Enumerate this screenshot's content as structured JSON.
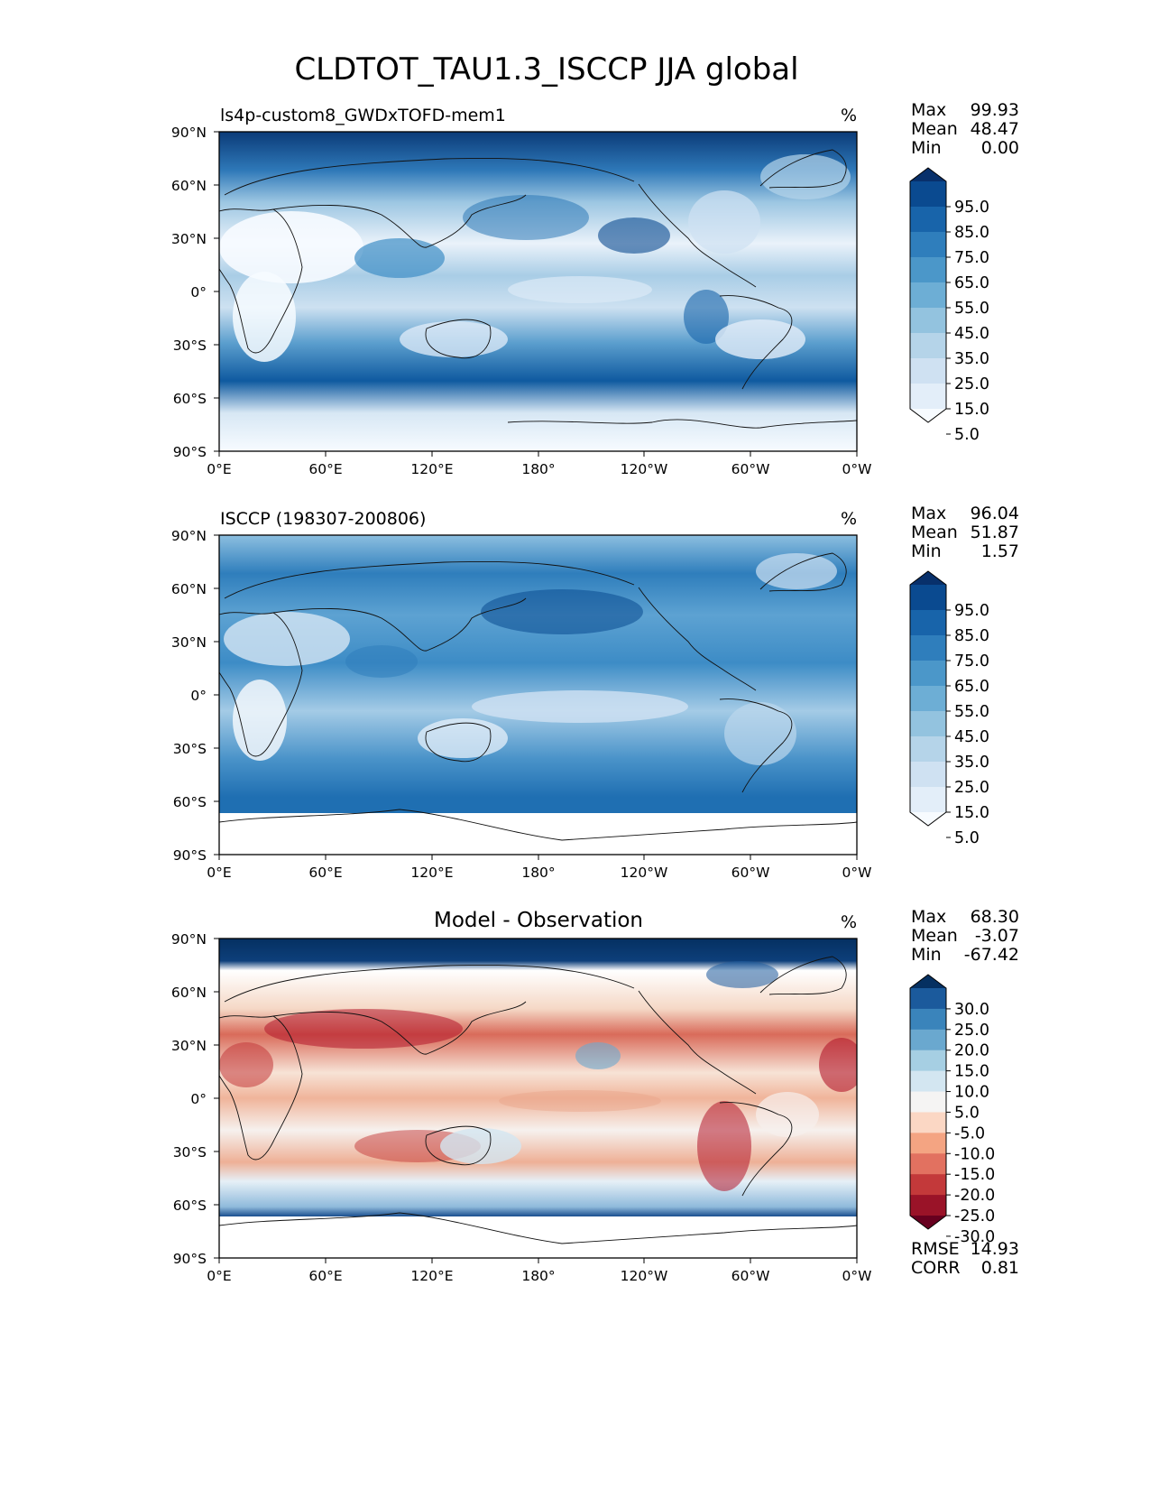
{
  "figure": {
    "suptitle": "CLDTOT_TAU1.3_ISCCP JJA global",
    "lon_ticks": [
      "0°E",
      "60°E",
      "120°E",
      "180°",
      "120°W",
      "60°W",
      "0°W"
    ],
    "lat_ticks": [
      "90°N",
      "60°N",
      "30°N",
      "0°",
      "30°S",
      "60°S",
      "90°S"
    ],
    "stat_labels": {
      "max": "Max",
      "mean": "Mean",
      "min": "Min",
      "rmse": "RMSE",
      "corr": "CORR"
    }
  },
  "panels": [
    {
      "title_left": "ls4p-custom8_GWDxTOFD-mem1",
      "title_center": "",
      "units": "%",
      "stats": {
        "max": "99.93",
        "mean": "48.47",
        "min": "0.00"
      },
      "colorbar": {
        "tick_labels": [
          "95.0",
          "85.0",
          "75.0",
          "65.0",
          "55.0",
          "45.0",
          "35.0",
          "25.0",
          "15.0",
          "5.0"
        ],
        "colors": [
          "#f7fbff",
          "#e3eef9",
          "#cfe1f2",
          "#b5d4e9",
          "#93c3df",
          "#6daed5",
          "#4b97c9",
          "#2f7ebc",
          "#1864aa",
          "#0a4a90",
          "#08306b"
        ]
      }
    },
    {
      "title_left": "ISCCP (198307-200806)",
      "title_center": "",
      "units": "%",
      "stats": {
        "max": "96.04",
        "mean": "51.87",
        "min": "1.57"
      },
      "colorbar": {
        "tick_labels": [
          "95.0",
          "85.0",
          "75.0",
          "65.0",
          "55.0",
          "45.0",
          "35.0",
          "25.0",
          "15.0",
          "5.0"
        ],
        "colors": [
          "#f7fbff",
          "#e3eef9",
          "#cfe1f2",
          "#b5d4e9",
          "#93c3df",
          "#6daed5",
          "#4b97c9",
          "#2f7ebc",
          "#1864aa",
          "#0a4a90",
          "#08306b"
        ]
      }
    },
    {
      "title_left": "",
      "title_center": "Model - Observation",
      "units": "%",
      "stats": {
        "max": "68.30",
        "mean": "-3.07",
        "min": "-67.42",
        "rmse": "14.93",
        "corr": "0.81"
      },
      "colorbar": {
        "tick_labels": [
          "30.0",
          "25.0",
          "20.0",
          "15.0",
          "10.0",
          "5.0",
          "-5.0",
          "-10.0",
          "-15.0",
          "-20.0",
          "-25.0",
          "-30.0"
        ],
        "colors": [
          "#67001f",
          "#9a1328",
          "#c3393a",
          "#e27160",
          "#f4a482",
          "#fbd7c4",
          "#f5f4f3",
          "#d3e6f1",
          "#a6cfe3",
          "#6aa8cf",
          "#3a84bb",
          "#1b5a9c",
          "#053061"
        ]
      }
    }
  ],
  "chart_data": [
    {
      "type": "heatmap",
      "title": "ls4p-custom8_GWDxTOFD-mem1",
      "units": "%",
      "x_ticks": [
        "0°E",
        "60°E",
        "120°E",
        "180°",
        "120°W",
        "60°W",
        "0°W"
      ],
      "y_ticks": [
        "90°N",
        "60°N",
        "30°N",
        "0°",
        "30°S",
        "60°S",
        "90°S"
      ],
      "xlim": [
        0,
        360
      ],
      "ylim": [
        -90,
        90
      ],
      "levels": [
        0,
        5,
        15,
        25,
        35,
        45,
        55,
        65,
        75,
        85,
        95,
        100
      ],
      "colormap": "Blues",
      "stats": {
        "max": 99.93,
        "mean": 48.47,
        "min": 0.0
      }
    },
    {
      "type": "heatmap",
      "title": "ISCCP (198307-200806)",
      "units": "%",
      "x_ticks": [
        "0°E",
        "60°E",
        "120°E",
        "180°",
        "120°W",
        "60°W",
        "0°W"
      ],
      "y_ticks": [
        "90°N",
        "60°N",
        "30°N",
        "0°",
        "30°S",
        "60°S",
        "90°S"
      ],
      "xlim": [
        0,
        360
      ],
      "ylim": [
        -90,
        90
      ],
      "levels": [
        0,
        5,
        15,
        25,
        35,
        45,
        55,
        65,
        75,
        85,
        95,
        100
      ],
      "colormap": "Blues",
      "stats": {
        "max": 96.04,
        "mean": 51.87,
        "min": 1.57
      }
    },
    {
      "type": "heatmap",
      "title": "Model - Observation",
      "units": "%",
      "x_ticks": [
        "0°E",
        "60°E",
        "120°E",
        "180°",
        "120°W",
        "60°W",
        "0°W"
      ],
      "y_ticks": [
        "90°N",
        "60°N",
        "30°N",
        "0°",
        "30°S",
        "60°S",
        "90°S"
      ],
      "xlim": [
        0,
        360
      ],
      "ylim": [
        -90,
        90
      ],
      "levels": [
        -30,
        -25,
        -20,
        -15,
        -10,
        -5,
        5,
        10,
        15,
        20,
        25,
        30
      ],
      "colormap": "RdBu",
      "stats": {
        "max": 68.3,
        "mean": -3.07,
        "min": -67.42,
        "rmse": 14.93,
        "corr": 0.81
      }
    }
  ]
}
